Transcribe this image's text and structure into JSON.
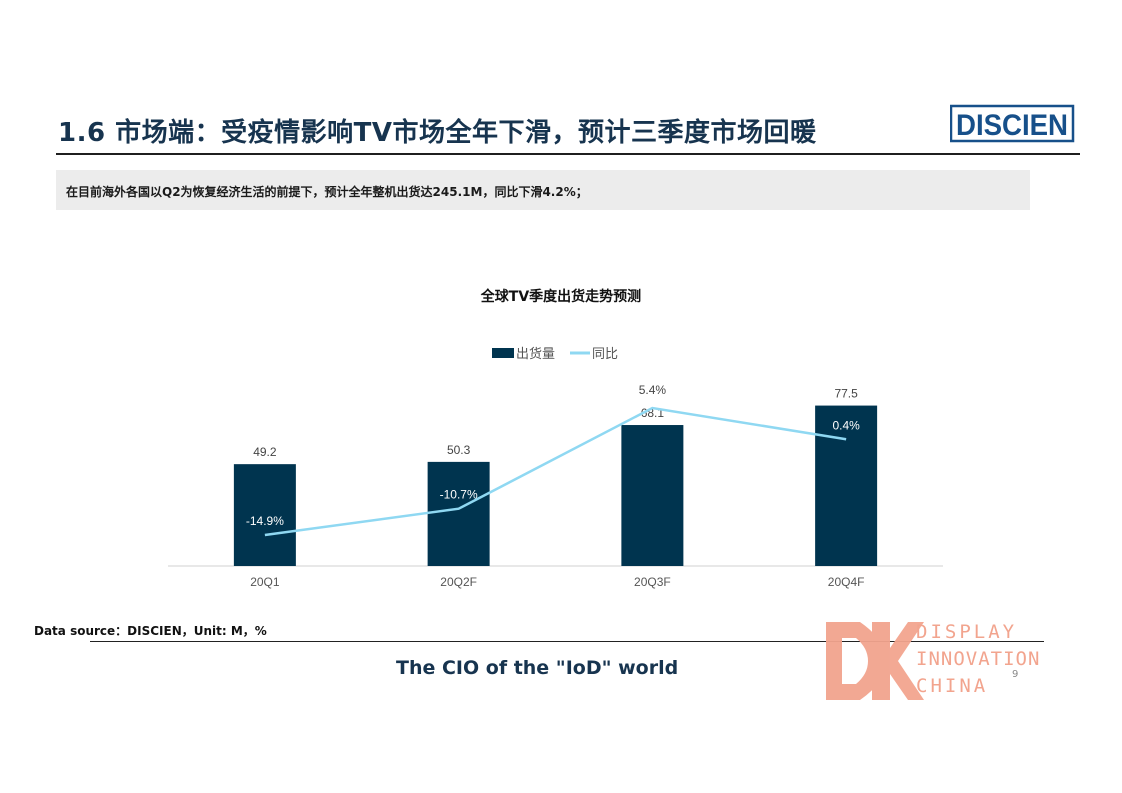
{
  "header": {
    "title": "1.6 市场端：受疫情影响TV市场全年下滑，预计三季度市场回暖",
    "logo_text": "DISCIEN",
    "brand_color": "#17508a"
  },
  "summary": {
    "text": "在目前海外各国以Q2为恢复经济生活的前提下，预计全年整机出货达245.1M，同比下滑4.2%；"
  },
  "chart_data": {
    "type": "bar",
    "title": "全球TV季度出货走势预测",
    "categories": [
      "20Q1",
      "20Q2F",
      "20Q3F",
      "20Q4F"
    ],
    "series": [
      {
        "name": "出货量",
        "kind": "bar",
        "values": [
          49.2,
          50.3,
          68.1,
          77.5
        ],
        "labels": [
          "49.2",
          "50.3",
          "68.1",
          "77.5"
        ],
        "color": "#00344f"
      },
      {
        "name": "同比",
        "kind": "line",
        "values": [
          -14.9,
          -10.7,
          5.4,
          0.4
        ],
        "labels": [
          "-14.9%",
          "-10.7%",
          "5.4%",
          "0.4%"
        ],
        "color": "#8fd8f2"
      }
    ],
    "ylim": [
      0,
      80
    ],
    "y2lim": [
      -25,
      7
    ],
    "legend": "top-center",
    "grid": false
  },
  "footer": {
    "source": "Data source：DISCIEN，Unit: M，%",
    "tagline": "The CIO of the \"IoD\" world",
    "page_number": "9",
    "dic_lines": [
      "DISPLAY",
      "INNOVATION",
      "CHINA"
    ],
    "dic_color": "#f2a48e"
  }
}
